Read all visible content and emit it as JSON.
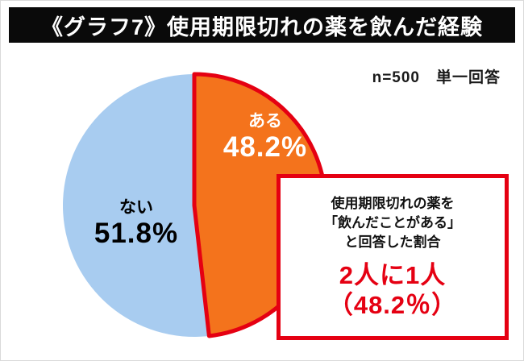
{
  "header": {
    "title": "《グラフ7》使用期限切れの薬を飲んだ経験"
  },
  "note": "n=500　単一回答",
  "chart_data": {
    "type": "pie",
    "title": "《グラフ7》使用期限切れの薬を飲んだ経験",
    "categories": [
      "ある",
      "ない"
    ],
    "values": [
      48.2,
      51.8
    ],
    "unit": "%",
    "sample_size": 500,
    "answer_type": "単一回答",
    "start_angle_deg": -90,
    "direction": "clockwise",
    "slice_labels": [
      {
        "name": "ある",
        "pct": "48.2%"
      },
      {
        "name": "ない",
        "pct": "51.8%"
      }
    ],
    "colors": {
      "yes_fill": "#F4731C",
      "no_fill": "#A8CCF0",
      "highlight_stroke": "#E50012",
      "yes_text": "#FFFFFF",
      "no_text": "#000000"
    },
    "legend": "none",
    "highlighted_slice": "ある"
  },
  "callout": {
    "line1": "使用期限切れの薬を",
    "line2": "「飲んだことがある」",
    "line3": "と回答した割合",
    "highlight_line1": "2人に1人",
    "highlight_line2": "（48.2％）",
    "border_color": "#E50012"
  }
}
